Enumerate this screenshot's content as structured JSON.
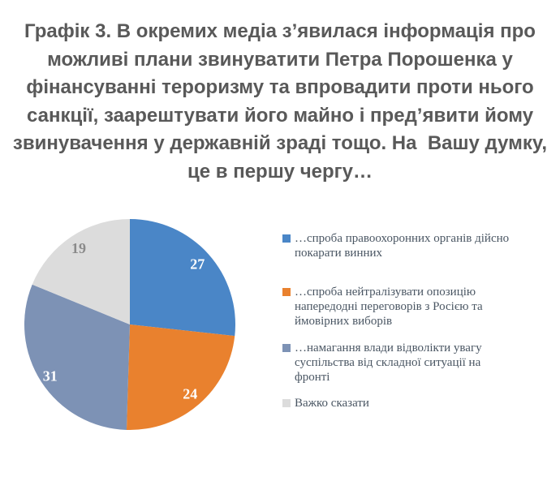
{
  "title": {
    "lines": [
      "Графік 3. В окремих медіа з’явилася інформація про",
      "можливі плани звинуватити Петра Порошенка у",
      "фінансуванні тероризму та впровадити проти нього",
      "санкції, заарештувати його майно і пред’явити йому",
      "звинувачення у державній зраді тощо. На  Вашу думку,",
      "це в першу чергу…"
    ]
  },
  "chart_data": {
    "type": "pie",
    "title": "Графік 3. В окремих медіа з’явилася інформація про можливі плани звинуватити Петра Порошенка у фінансуванні тероризму та впровадити проти нього санкції, заарештувати його майно і пред’явити йому звинувачення у державній зраді тощо. На  Вашу думку, це в першу чергу…",
    "direction": "clockwise",
    "start_angle_deg": 0,
    "legend_position": "right",
    "data_labels": "values",
    "slices": [
      {
        "label": "…спроба правоохоронних органів дійсно покарати винних",
        "value": 27,
        "color": "#4A86C7",
        "value_label_color": "#FFFFFF"
      },
      {
        "label": "…спроба нейтралізувати опозицію напередодні переговорів з Росією та ймовірних виборів",
        "value": 24,
        "color": "#E9812E",
        "value_label_color": "#FFFFFF"
      },
      {
        "label": "…намагання влади відволікти увагу суспільства від складної ситуації на фронті",
        "value": 31,
        "color": "#7D92B5",
        "value_label_color": "#FFFFFF"
      },
      {
        "label": "Важко сказати",
        "value": 19,
        "color": "#DCDCDC",
        "value_label_color": "#8A8A8A"
      }
    ]
  }
}
